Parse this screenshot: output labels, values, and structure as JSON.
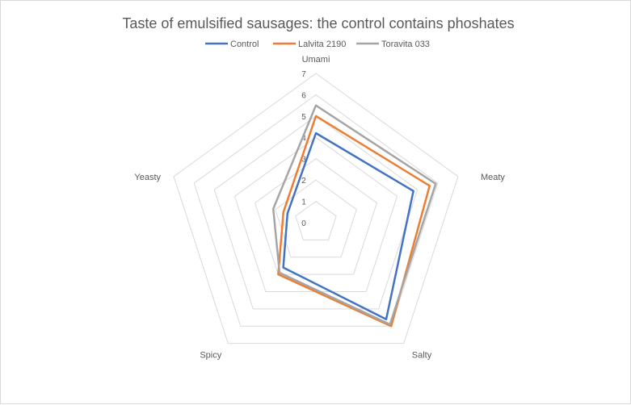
{
  "chart_data": {
    "type": "radar",
    "title": "Taste of emulsified sausages: the control contains phoshates",
    "axes": [
      "Umami",
      "Meaty",
      "Salty",
      "Spicy",
      "Yeasty"
    ],
    "rlim": [
      0,
      7
    ],
    "ticks": [
      0,
      1,
      2,
      3,
      4,
      5,
      6,
      7
    ],
    "grid": true,
    "legend": "top",
    "series": [
      {
        "name": "Control",
        "color": "#4472c4",
        "values": [
          4.2,
          4.8,
          5.6,
          2.6,
          1.4
        ]
      },
      {
        "name": "Lalvita 2190",
        "color": "#ed7d31",
        "values": [
          5.0,
          5.6,
          6.0,
          3.0,
          1.6
        ]
      },
      {
        "name": "Toravita 033",
        "color": "#a5a5a5",
        "values": [
          5.5,
          5.9,
          5.9,
          2.9,
          2.1
        ]
      }
    ]
  }
}
